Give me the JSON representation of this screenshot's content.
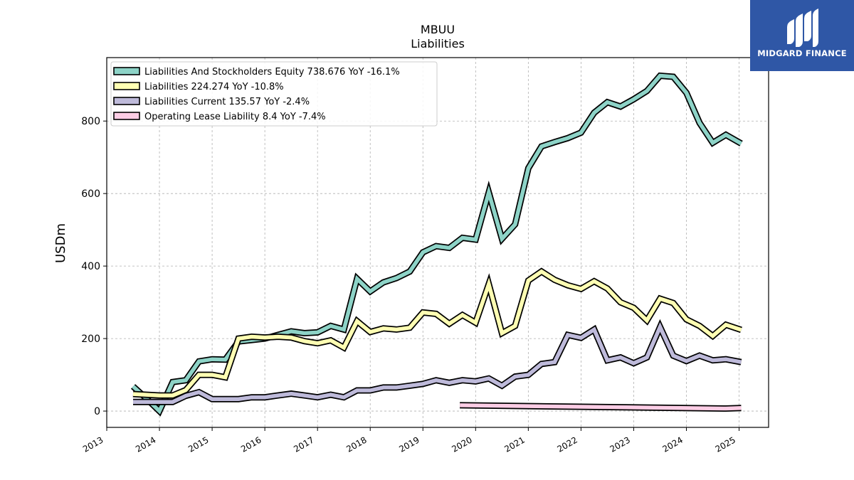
{
  "logo": {
    "text": "MIDGARD FINANCE",
    "bg_color": "#2f57a6"
  },
  "chart_data": {
    "type": "line",
    "title": "MBUU",
    "subtitle": "Liabilities",
    "xlabel": "",
    "ylabel": "USDm",
    "xlim": [
      2013.0,
      2025.56
    ],
    "ylim": [
      -45,
      975
    ],
    "x_ticks": [
      2013,
      2014,
      2015,
      2016,
      2017,
      2018,
      2019,
      2020,
      2021,
      2022,
      2023,
      2024,
      2025
    ],
    "y_ticks": [
      0,
      200,
      400,
      600,
      800
    ],
    "grid": true,
    "legend_position": "top-left",
    "series": [
      {
        "name": "Liabilities And Stockholders Equity",
        "legend_label": "Liabilities And Stockholders Equity  738.676 YoY -16.1%",
        "color": "#8dd3c7",
        "x": [
          2013.5,
          2013.75,
          2014.0,
          2014.25,
          2014.5,
          2014.75,
          2015.0,
          2015.25,
          2015.5,
          2015.75,
          2016.0,
          2016.25,
          2016.5,
          2016.75,
          2017.0,
          2017.25,
          2017.5,
          2017.75,
          2018.0,
          2018.25,
          2018.5,
          2018.75,
          2019.0,
          2019.25,
          2019.5,
          2019.75,
          2020.0,
          2020.25,
          2020.5,
          2020.75,
          2021.0,
          2021.25,
          2021.5,
          2021.75,
          2022.0,
          2022.25,
          2022.5,
          2022.75,
          2023.0,
          2023.25,
          2023.5,
          2023.75,
          2024.0,
          2024.25,
          2024.5,
          2024.75,
          2025.04
        ],
        "values": [
          68,
          35,
          0,
          80,
          85,
          137,
          143,
          142,
          192,
          196,
          200,
          210,
          220,
          215,
          217,
          235,
          225,
          365,
          330,
          355,
          367,
          385,
          438,
          455,
          450,
          478,
          473,
          603,
          475,
          515,
          670,
          730,
          742,
          753,
          768,
          823,
          852,
          840,
          860,
          883,
          925,
          922,
          878,
          795,
          740,
          762,
          738
        ]
      },
      {
        "name": "Liabilities",
        "legend_label": "Liabilities  224.274 YoY -10.8%",
        "color": "#ffffb3",
        "x": [
          2013.5,
          2013.75,
          2014.0,
          2014.25,
          2014.5,
          2014.75,
          2015.0,
          2015.25,
          2015.5,
          2015.75,
          2016.0,
          2016.25,
          2016.5,
          2016.75,
          2017.0,
          2017.25,
          2017.5,
          2017.75,
          2018.0,
          2018.25,
          2018.5,
          2018.75,
          2019.0,
          2019.25,
          2019.5,
          2019.75,
          2020.0,
          2020.25,
          2020.5,
          2020.75,
          2021.0,
          2021.25,
          2021.5,
          2021.75,
          2022.0,
          2022.25,
          2022.5,
          2022.75,
          2023.0,
          2023.25,
          2023.5,
          2023.75,
          2024.0,
          2024.25,
          2024.5,
          2024.75,
          2025.04
        ],
        "values": [
          47,
          45,
          43,
          43,
          58,
          100,
          100,
          93,
          200,
          205,
          203,
          205,
          203,
          193,
          187,
          195,
          175,
          248,
          218,
          228,
          225,
          230,
          272,
          268,
          241,
          265,
          244,
          350,
          215,
          235,
          360,
          385,
          362,
          347,
          337,
          358,
          338,
          300,
          285,
          250,
          310,
          298,
          253,
          235,
          207,
          238,
          224
        ]
      },
      {
        "name": "Liabilities Current",
        "legend_label": "Liabilities Current  135.57 YoY -2.4%",
        "color": "#bebada",
        "x": [
          2013.5,
          2013.75,
          2014.0,
          2014.25,
          2014.5,
          2014.75,
          2015.0,
          2015.25,
          2015.5,
          2015.75,
          2016.0,
          2016.25,
          2016.5,
          2016.75,
          2017.0,
          2017.25,
          2017.5,
          2017.75,
          2018.0,
          2018.25,
          2018.5,
          2018.75,
          2019.0,
          2019.25,
          2019.5,
          2019.75,
          2020.0,
          2020.25,
          2020.5,
          2020.75,
          2021.0,
          2021.25,
          2021.5,
          2021.75,
          2022.0,
          2022.25,
          2022.5,
          2022.75,
          2023.0,
          2023.25,
          2023.5,
          2023.75,
          2024.0,
          2024.25,
          2024.5,
          2024.75,
          2025.04
        ],
        "values": [
          25,
          25,
          25,
          25,
          42,
          52,
          33,
          33,
          33,
          38,
          38,
          43,
          48,
          43,
          38,
          45,
          38,
          57,
          57,
          65,
          65,
          70,
          75,
          85,
          78,
          85,
          82,
          90,
          70,
          95,
          100,
          130,
          135,
          210,
          202,
          225,
          140,
          148,
          132,
          148,
          232,
          153,
          138,
          153,
          140,
          143,
          135
        ]
      },
      {
        "name": "Operating Lease Liability",
        "legend_label": "Operating Lease Liability  8.4 YoY -7.4%",
        "color": "#fccde5",
        "x": [
          2019.7,
          2024.75,
          2025.04
        ],
        "values": [
          16,
          7,
          8.4
        ]
      }
    ]
  }
}
